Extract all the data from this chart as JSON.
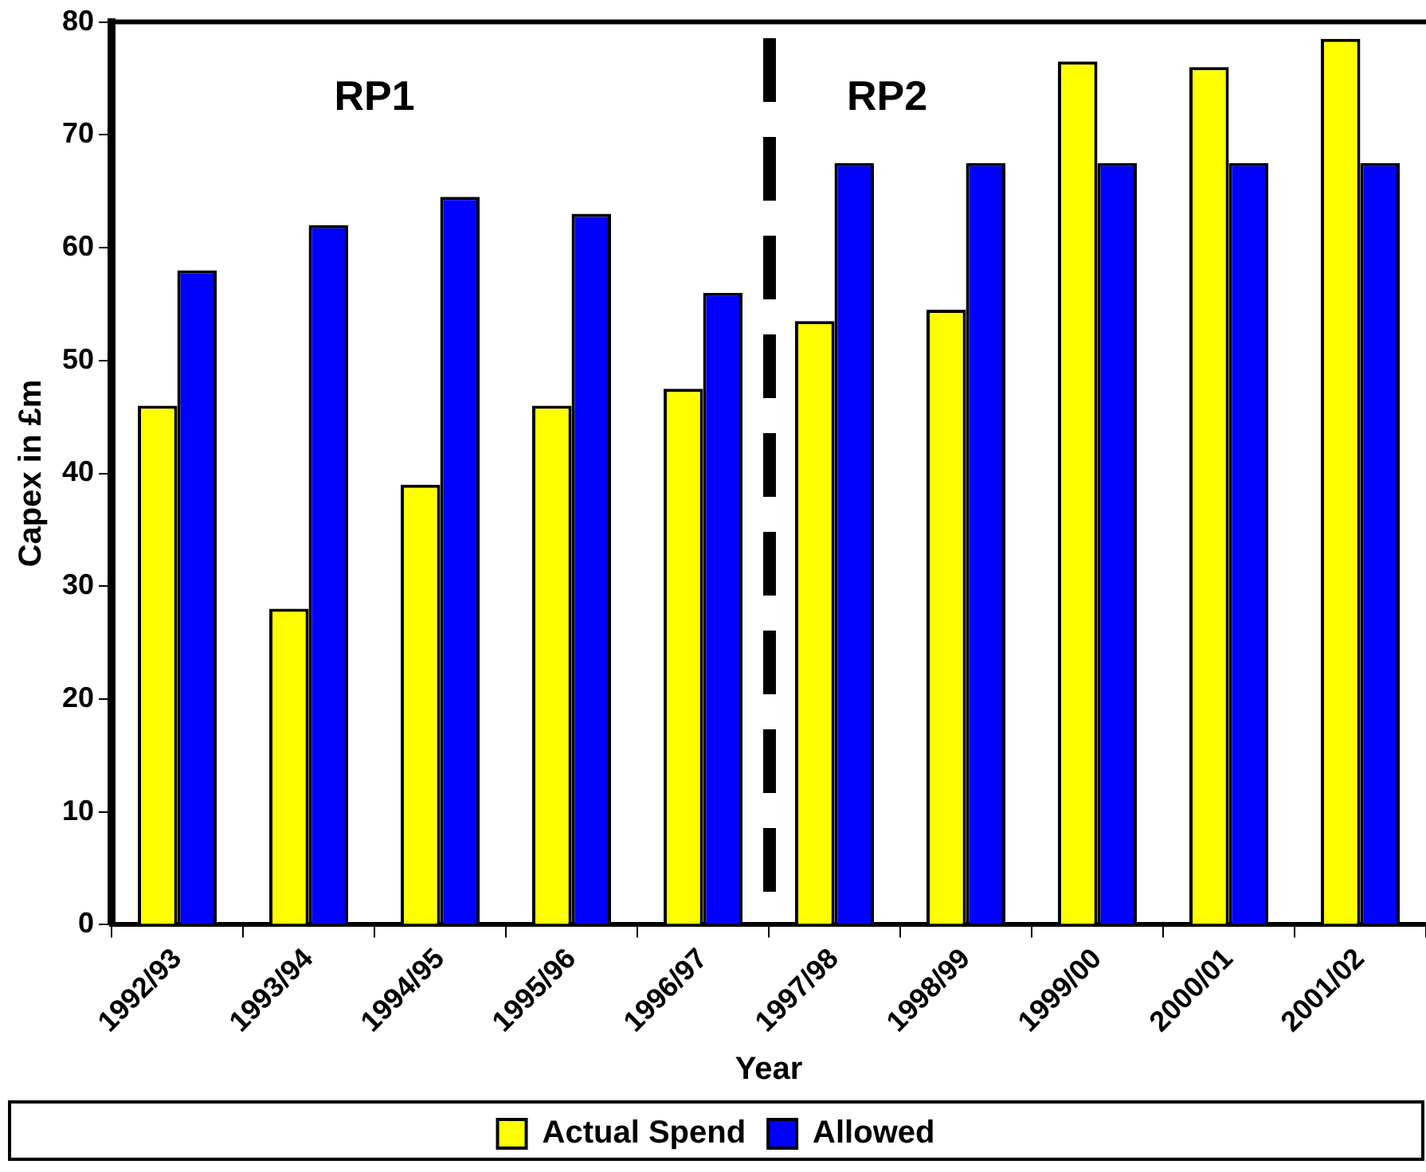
{
  "chart_data": {
    "type": "bar",
    "categories": [
      "1992/93",
      "1993/94",
      "1994/95",
      "1995/96",
      "1996/97",
      "1997/98",
      "1998/99",
      "1999/00",
      "2000/01",
      "2001/02"
    ],
    "series": [
      {
        "name": "Actual Spend",
        "color": "#ffff00",
        "values": [
          46,
          28,
          39,
          46,
          47.5,
          53.5,
          54.5,
          76.5,
          76,
          78.5
        ]
      },
      {
        "name": "Allowed",
        "color": "#0000ff",
        "values": [
          58,
          62,
          64.5,
          63,
          56,
          67.5,
          67.5,
          67.5,
          67.5,
          67.5
        ]
      }
    ],
    "xlabel": "Year",
    "ylabel": "Capex in £m",
    "ylim": [
      0,
      80
    ],
    "yticks": [
      0,
      10,
      20,
      30,
      40,
      50,
      60,
      70,
      80
    ],
    "grid": false,
    "legend": "bottom",
    "annotations": [
      "RP1",
      "RP2"
    ]
  }
}
